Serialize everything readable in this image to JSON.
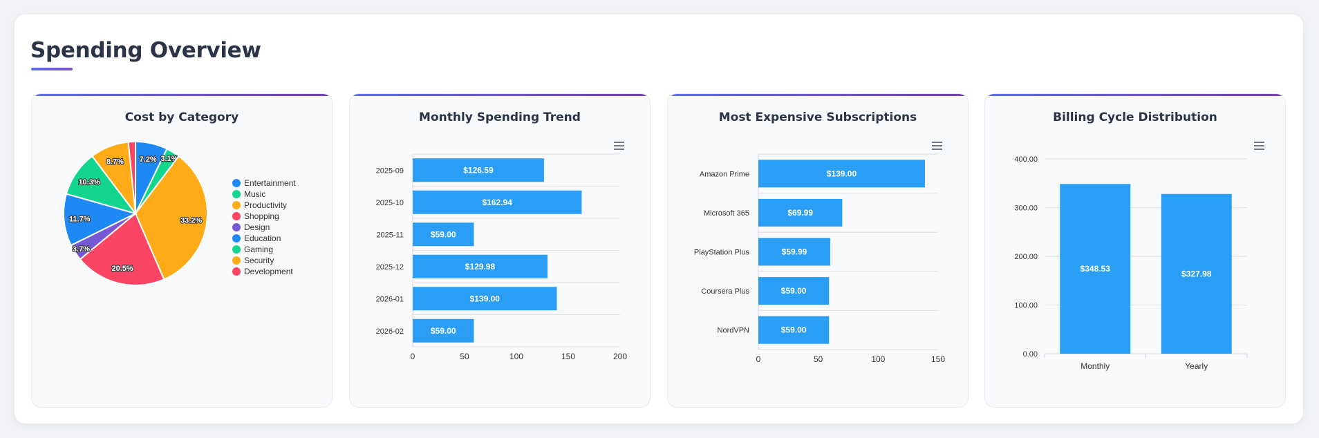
{
  "header": {
    "title": "Spending Overview"
  },
  "colors": {
    "bar": "#2a9df4",
    "accent_start": "#5b6ff0",
    "accent_end": "#7a3fb8"
  },
  "icons": {
    "chart_menu": "hamburger-menu-icon"
  },
  "chart_data": [
    {
      "type": "pie",
      "title": "Cost by Category",
      "legend_position": "right",
      "slices": [
        {
          "label": "Entertainment",
          "value": 7.2,
          "data_label": "7.2%",
          "color": "#1e88f5"
        },
        {
          "label": "Music",
          "value": 3.1,
          "data_label": "3.1%",
          "color": "#12d68e"
        },
        {
          "label": "Productivity",
          "value": 33.2,
          "data_label": "33.2%",
          "color": "#ffab18"
        },
        {
          "label": "Shopping",
          "value": 20.5,
          "data_label": "20.5%",
          "color": "#fb4565"
        },
        {
          "label": "Design",
          "value": 3.7,
          "data_label": "3.7%",
          "color": "#7659d4"
        },
        {
          "label": "Education",
          "value": 11.7,
          "data_label": "11.7%",
          "color": "#1e88f5"
        },
        {
          "label": "Gaming",
          "value": 10.3,
          "data_label": "10.3%",
          "color": "#12d68e"
        },
        {
          "label": "Security",
          "value": 8.7,
          "data_label": "8.7%",
          "color": "#ffab18"
        },
        {
          "label": "Development",
          "value": 1.6,
          "data_label": "",
          "color": "#fb4565"
        }
      ]
    },
    {
      "type": "bar",
      "orientation": "horizontal",
      "title": "Monthly Spending Trend",
      "categories": [
        "2025-09",
        "2025-10",
        "2025-11",
        "2025-12",
        "2026-01",
        "2026-02"
      ],
      "values": [
        126.59,
        162.94,
        59.0,
        129.98,
        139.0,
        59.0
      ],
      "value_labels": [
        "$126.59",
        "$162.94",
        "$59.00",
        "$129.98",
        "$139.00",
        "$59.00"
      ],
      "xlim": [
        0,
        200
      ],
      "x_ticks": [
        "0",
        "50",
        "100",
        "150",
        "200"
      ],
      "x_tick_values": [
        0,
        50,
        100,
        150,
        200
      ],
      "grid": true
    },
    {
      "type": "bar",
      "orientation": "horizontal",
      "title": "Most Expensive Subscriptions",
      "categories": [
        "Amazon Prime",
        "Microsoft 365",
        "PlayStation Plus",
        "Coursera Plus",
        "NordVPN"
      ],
      "values": [
        139.0,
        69.99,
        59.99,
        59.0,
        59.0
      ],
      "value_labels": [
        "$139.00",
        "$69.99",
        "$59.99",
        "$59.00",
        "$59.00"
      ],
      "xlim": [
        0,
        150
      ],
      "x_ticks": [
        "0",
        "50",
        "100",
        "150"
      ],
      "x_tick_values": [
        0,
        50,
        100,
        150
      ],
      "grid": true
    },
    {
      "type": "bar",
      "orientation": "vertical",
      "title": "Billing Cycle Distribution",
      "categories": [
        "Monthly",
        "Yearly"
      ],
      "values": [
        348.53,
        327.98
      ],
      "value_labels": [
        "$348.53",
        "$327.98"
      ],
      "ylim": [
        0,
        400
      ],
      "y_ticks": [
        "0.00",
        "100.00",
        "200.00",
        "300.00",
        "400.00"
      ],
      "y_tick_values": [
        0,
        100,
        200,
        300,
        400
      ],
      "grid": true
    }
  ]
}
